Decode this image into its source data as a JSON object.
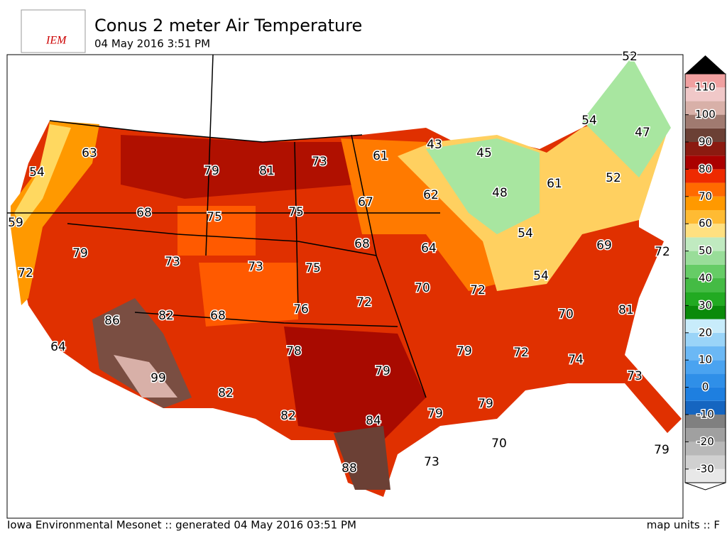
{
  "header": {
    "logo": "IEM",
    "title": "Conus 2 meter Air Temperature",
    "subtitle": "04 May 2016 3:51 PM"
  },
  "map": {
    "labels": [
      52,
      54,
      47,
      63,
      61,
      43,
      45,
      73,
      54,
      79,
      81,
      52,
      48,
      61,
      62,
      68,
      75,
      75,
      67,
      59,
      54,
      79,
      68,
      64,
      69,
      72,
      73,
      73,
      75,
      72,
      54,
      70,
      72,
      72,
      76,
      70,
      81,
      86,
      82,
      68,
      79,
      72,
      78,
      64,
      74,
      73,
      79,
      99,
      82,
      79,
      79,
      82,
      84,
      70,
      73,
      79,
      88
    ]
  },
  "colorbar": {
    "clim": [
      -35,
      115
    ],
    "ticks": [
      -30,
      -20,
      -10,
      0,
      10,
      20,
      30,
      40,
      50,
      60,
      70,
      80,
      90,
      100,
      110
    ],
    "colors": [
      "#e8e8e8",
      "#d0d0d0",
      "#b8b8b8",
      "#a0a0a0",
      "#808080",
      "#1565c0",
      "#1e7fe0",
      "#2f8fe8",
      "#4aa3f0",
      "#6bb8f5",
      "#9ad4f8",
      "#c8ecfb",
      "#0a8a0a",
      "#22aa22",
      "#44bb44",
      "#66cc66",
      "#99dd99",
      "#c0eac0",
      "#ffe080",
      "#ffbb33",
      "#ff9900",
      "#ff6a00",
      "#ee2a00",
      "#aa0000",
      "#8b1a10",
      "#6b4035",
      "#a07a70",
      "#d8b0a8",
      "#f0c8c8",
      "#f0a0a0"
    ]
  },
  "footer": {
    "left": "Iowa Environmental Mesonet :: generated 04 May 2016 03:51 PM",
    "right": "map units :: F"
  }
}
